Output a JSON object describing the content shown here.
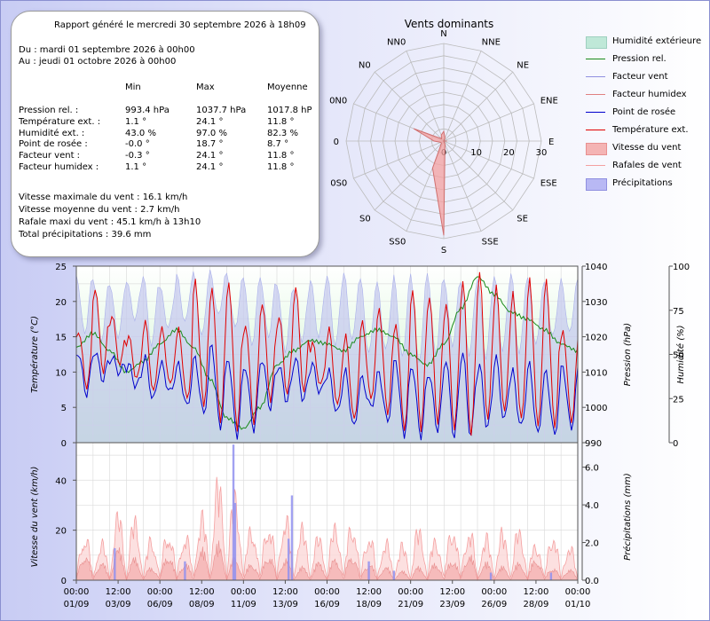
{
  "summary": {
    "title": "Rapport généré le mercredi 30 septembre 2026 à 18h09",
    "from": "Du : mardi 01 septembre 2026 à 00h00",
    "to": "Au : jeudi 01 octobre 2026 à 00h00",
    "col_min": "Min",
    "col_max": "Max",
    "col_avg": "Moyenne",
    "rows": [
      {
        "label": "Pression rel. :",
        "min": "993.4 hPa",
        "max": "1037.7 hPa",
        "avg": "1017.8 hPa"
      },
      {
        "label": "Température ext. :",
        "min": "1.1 °",
        "max": "24.1 °",
        "avg": "11.8 °"
      },
      {
        "label": "Humidité ext. :",
        "min": "43.0 %",
        "max": "97.0 %",
        "avg": "82.3 %"
      },
      {
        "label": "Point de rosée :",
        "min": "-0.0 °",
        "max": "18.7 °",
        "avg": "8.7 °"
      },
      {
        "label": "Facteur vent :",
        "min": "-0.3 °",
        "max": "24.1 °",
        "avg": "11.8 °"
      },
      {
        "label": "Facteur humidex :",
        "min": "1.1 °",
        "max": "24.1 °",
        "avg": "11.8 °"
      }
    ],
    "wind_max": "Vitesse maximale du vent : 16.1 km/h",
    "wind_avg": "Vitesse moyenne du vent : 2.7 km/h",
    "gust_max": "Rafale maxi du vent : 45.1 km/h à 13h10",
    "rain_total": "Total précipitations : 39.6 mm"
  },
  "legend": [
    {
      "label": "Humidité extérieure",
      "kind": "area",
      "color": "#bfe8d8",
      "border": "#9fd0c0"
    },
    {
      "label": "Pression rel.",
      "kind": "line",
      "color": "#1a8a1a"
    },
    {
      "label": "Facteur vent",
      "kind": "line",
      "color": "#9090e0"
    },
    {
      "label": "Facteur humidex",
      "kind": "line",
      "color": "#e08080"
    },
    {
      "label": "Point de rosée",
      "kind": "line",
      "color": "#0000cc"
    },
    {
      "label": "Température ext.",
      "kind": "line",
      "color": "#e00000"
    },
    {
      "label": "Vitesse du vent",
      "kind": "area",
      "color": "#f4b4b4",
      "border": "#e89090"
    },
    {
      "label": "Rafales de vent",
      "kind": "line",
      "color": "#f4a0a0"
    },
    {
      "label": "Précipitations",
      "kind": "area",
      "color": "#b8b8f4",
      "border": "#9090e0"
    }
  ],
  "chart_data": [
    {
      "type": "radar",
      "title": "Vents dominants",
      "directions": [
        "N",
        "NNE",
        "NE",
        "ENE",
        "E",
        "ESE",
        "SE",
        "SSE",
        "S",
        "SS0",
        "S0",
        "0S0",
        "0",
        "0N0",
        "N0",
        "NN0"
      ],
      "radial_ticks": [
        "0",
        "10",
        "20",
        "30"
      ],
      "rmax": 30,
      "series": [
        {
          "values": [
            3,
            1,
            0,
            0,
            1,
            0,
            0,
            1,
            29,
            9,
            1,
            1,
            3,
            10,
            1,
            2
          ],
          "color": "#f4a0a0"
        }
      ]
    },
    {
      "type": "line",
      "x_start": "2026-09-01T00:00",
      "x_end": "2026-10-01T00:00",
      "x_ticks": [
        {
          "time": "00:00",
          "date": "01/09"
        },
        {
          "time": "12:00",
          "date": "03/09"
        },
        {
          "time": "00:00",
          "date": "06/09"
        },
        {
          "time": "12:00",
          "date": "08/09"
        },
        {
          "time": "00:00",
          "date": "11/09"
        },
        {
          "time": "12:00",
          "date": "13/09"
        },
        {
          "time": "00:00",
          "date": "16/09"
        },
        {
          "time": "12:00",
          "date": "18/09"
        },
        {
          "time": "00:00",
          "date": "21/09"
        },
        {
          "time": "12:00",
          "date": "23/09"
        },
        {
          "time": "00:00",
          "date": "26/09"
        },
        {
          "time": "12:00",
          "date": "28/09"
        },
        {
          "time": "00:00",
          "date": "01/10"
        }
      ],
      "left_axis": {
        "label": "Température (°C)",
        "ylim": [
          0,
          25
        ],
        "ticks": [
          "0",
          "5",
          "10",
          "15",
          "20",
          "25"
        ]
      },
      "right_axis_1": {
        "label": "Pression (hPa)",
        "ylim": [
          990,
          1040
        ],
        "ticks": [
          "990",
          "1000",
          "1010",
          "1020",
          "1030",
          "1040"
        ]
      },
      "right_axis_2": {
        "label": "Humidité (%)",
        "ylim": [
          0,
          100
        ],
        "ticks": [
          "0",
          "25",
          "50",
          "75",
          "100"
        ]
      },
      "series": [
        {
          "name": "Humidité extérieure",
          "axis": "right_axis_2",
          "daily_max": [
            95,
            93,
            90,
            92,
            95,
            88,
            95,
            96,
            97,
            95,
            93,
            94,
            90,
            88,
            93,
            95,
            96,
            92,
            90,
            94,
            95,
            96,
            93,
            92,
            94,
            95,
            96,
            93,
            90,
            92
          ],
          "daily_min": [
            62,
            58,
            60,
            70,
            55,
            65,
            68,
            60,
            72,
            65,
            55,
            60,
            52,
            58,
            60,
            55,
            58,
            50,
            52,
            48,
            45,
            50,
            55,
            50,
            48,
            52,
            50,
            55,
            60,
            62
          ]
        },
        {
          "name": "Pression rel.",
          "axis": "right_axis_1",
          "points": [
            [
              0,
              1017
            ],
            [
              1,
              1021
            ],
            [
              2,
              1016
            ],
            [
              3,
              1010
            ],
            [
              4,
              1013
            ],
            [
              5,
              1018
            ],
            [
              6,
              1022
            ],
            [
              7,
              1017
            ],
            [
              8,
              1008
            ],
            [
              9,
              997
            ],
            [
              10,
              994
            ],
            [
              11,
              1000
            ],
            [
              12,
              1012
            ],
            [
              13,
              1016
            ],
            [
              14,
              1019
            ],
            [
              15,
              1018
            ],
            [
              16,
              1016
            ],
            [
              17,
              1020
            ],
            [
              18,
              1022
            ],
            [
              19,
              1020
            ],
            [
              20,
              1015
            ],
            [
              21,
              1012
            ],
            [
              22,
              1018
            ],
            [
              23,
              1028
            ],
            [
              24,
              1037
            ],
            [
              25,
              1032
            ],
            [
              26,
              1027
            ],
            [
              27,
              1025
            ],
            [
              28,
              1022
            ],
            [
              29,
              1018
            ],
            [
              30,
              1016
            ]
          ]
        },
        {
          "name": "Température ext.",
          "axis": "left_axis",
          "daily_max": [
            16,
            22,
            18,
            15,
            17,
            16,
            16,
            23,
            22,
            23,
            17,
            20,
            18,
            22,
            14,
            16,
            15,
            17,
            19,
            17,
            22,
            21,
            20,
            23,
            24,
            22,
            21,
            23,
            23,
            16
          ],
          "daily_min": [
            8,
            10,
            11,
            9,
            7,
            8,
            6,
            5,
            3,
            2,
            3,
            6,
            7,
            7,
            8,
            5,
            3,
            6,
            4,
            2,
            2,
            3,
            2,
            1,
            3,
            4,
            3,
            2,
            2,
            3
          ]
        },
        {
          "name": "Point de rosée",
          "axis": "left_axis",
          "daily_max": [
            13,
            13,
            12,
            11,
            12,
            11,
            11,
            12,
            14,
            12,
            11,
            12,
            11,
            12,
            11,
            10,
            10,
            9,
            10,
            12,
            11,
            10,
            12,
            13,
            11,
            12,
            10,
            11,
            10,
            11
          ],
          "daily_min": [
            7,
            9,
            10,
            8,
            6,
            7,
            5,
            4,
            2,
            1,
            2,
            5,
            6,
            6,
            7,
            4,
            2,
            5,
            3,
            1,
            1,
            2,
            1,
            1,
            2,
            3,
            2,
            1,
            1,
            2
          ]
        },
        {
          "name": "Vitesse du vent",
          "axis": "left_axis",
          "daily_peak": [
            12,
            8,
            14,
            10,
            6,
            12,
            8,
            14,
            16,
            10,
            8,
            12,
            10,
            6,
            8,
            10,
            12,
            8,
            6,
            4,
            6,
            8,
            10,
            12,
            8,
            6,
            8,
            10,
            6,
            5
          ]
        },
        {
          "name": "Rafales de vent",
          "axis": "left_axis",
          "daily_peak": [
            22,
            18,
            30,
            28,
            20,
            24,
            22,
            30,
            45,
            40,
            26,
            28,
            30,
            24,
            20,
            26,
            28,
            22,
            18,
            16,
            24,
            20,
            26,
            24,
            20,
            22,
            24,
            18,
            22,
            16
          ]
        },
        {
          "name": "Précipitations",
          "axis": "right_axis_2",
          "events": [
            [
              2.3,
              1.7
            ],
            [
              6.5,
              1.0
            ],
            [
              9.4,
              7.2
            ],
            [
              9.5,
              4.1
            ],
            [
              12.7,
              2.2
            ],
            [
              12.9,
              4.5
            ],
            [
              17.5,
              1.0
            ],
            [
              19.0,
              0.5
            ],
            [
              24.8,
              0.4
            ],
            [
              28.4,
              0.4
            ]
          ]
        }
      ]
    },
    {
      "type": "area",
      "left_axis": {
        "label": "Vitesse du vent (km/h)",
        "ylim": [
          0,
          55
        ],
        "ticks": [
          "0",
          "20",
          "40"
        ]
      },
      "right_axis": {
        "label": "Précipitations (mm)",
        "ylim": [
          0,
          7.3
        ],
        "ticks": [
          "0.0",
          "2.0",
          "4.0",
          "6.0"
        ]
      }
    }
  ]
}
